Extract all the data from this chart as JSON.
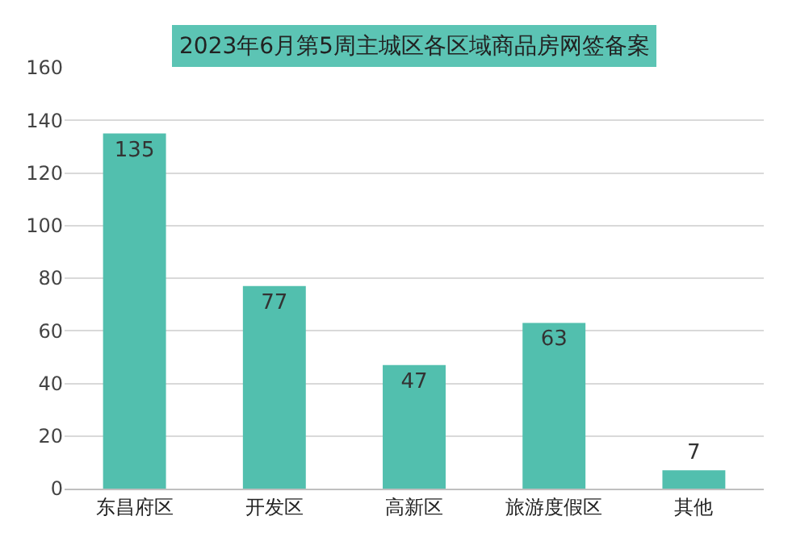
{
  "chart_data": {
    "type": "bar",
    "title": "2023年6月第5周主城区各区域商品房网签备案",
    "categories": [
      "东昌府区",
      "开发区",
      "高新区",
      "旅游度假区",
      "其他"
    ],
    "values": [
      135,
      77,
      47,
      63,
      7
    ],
    "color": "#52bfae",
    "ylim": [
      0,
      160
    ],
    "yticks": [
      0,
      20,
      40,
      60,
      80,
      100,
      120,
      140,
      160
    ],
    "grid": "y",
    "data_labels": true
  }
}
